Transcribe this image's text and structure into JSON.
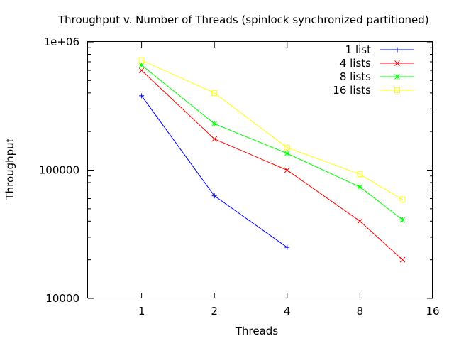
{
  "chart_data": {
    "type": "line",
    "title": "Throughput v. Number of Threads (spinlock synchronized partitioned)",
    "xlabel": "Threads",
    "ylabel": "Throughput",
    "x_scale": "log2",
    "y_scale": "log10",
    "xlim": [
      0.6,
      16
    ],
    "ylim": [
      10000,
      1000000
    ],
    "x_ticks": [
      1,
      2,
      4,
      8,
      16
    ],
    "x_tick_labels": [
      "1",
      "2",
      "4",
      "8",
      "16"
    ],
    "y_ticks": [
      10000,
      100000,
      1000000
    ],
    "y_tick_labels": [
      "10000",
      "100000",
      "1e+06"
    ],
    "legend_position": "top-right",
    "grid": false,
    "series": [
      {
        "name": "1 list",
        "color": "#0000ff",
        "marker": "plus",
        "x": [
          1,
          2,
          4
        ],
        "y": [
          380000,
          63000,
          25000
        ]
      },
      {
        "name": "4 lists",
        "color": "#ff0000",
        "marker": "cross",
        "x": [
          1,
          2,
          4,
          8,
          12
        ],
        "y": [
          600000,
          175000,
          100000,
          40000,
          20000
        ]
      },
      {
        "name": "8 lists",
        "color": "#00ff00",
        "marker": "star",
        "x": [
          1,
          2,
          4,
          8,
          12
        ],
        "y": [
          660000,
          230000,
          135000,
          74000,
          41000
        ]
      },
      {
        "name": "16 lists",
        "color": "#ffff00",
        "marker": "square",
        "x": [
          1,
          2,
          4,
          8,
          12
        ],
        "y": [
          720000,
          400000,
          150000,
          93000,
          59000
        ]
      }
    ]
  }
}
